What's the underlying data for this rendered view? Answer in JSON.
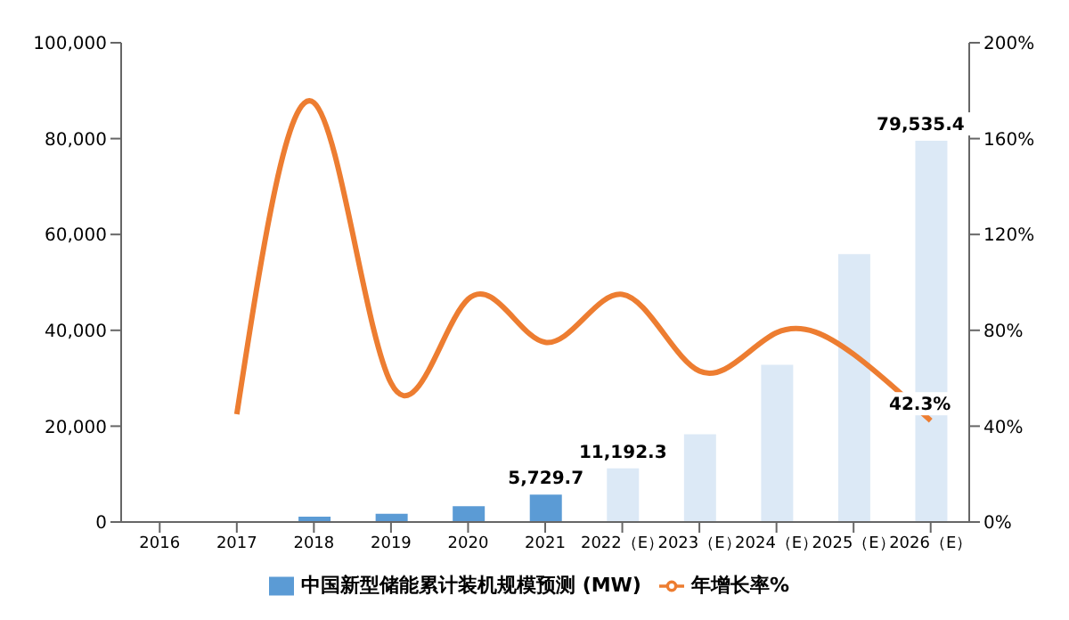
{
  "chart_data": {
    "type": "bar",
    "categories": [
      "2016",
      "2017",
      "2018",
      "2019",
      "2020",
      "2021",
      "2022（E）",
      "2023（E）",
      "2024（E）",
      "2025（E）",
      "2026（E）"
    ],
    "series": [
      {
        "name": "中国新型储能累计装机规模预测 (MW)",
        "color": "#5b9bd5",
        "colors": [
          "#5b9bd5",
          "#5b9bd5",
          "#5b9bd5",
          "#5b9bd5",
          "#5b9bd5",
          "#5b9bd5",
          "#dce9f6",
          "#dce9f6",
          "#dce9f6",
          "#dce9f6",
          "#dce9f6"
        ],
        "values": [
          null,
          null,
          1100,
          1700,
          3300,
          5729.7,
          11192.3,
          18300,
          32800,
          55900,
          79535.4
        ],
        "value_labels": [
          null,
          null,
          null,
          null,
          null,
          "5,729.7",
          "11,192.3",
          null,
          null,
          null,
          "79,535.4"
        ]
      },
      {
        "name": "年增长率%",
        "type": "line",
        "axis": "y2",
        "color": "#ed7d31",
        "values": [
          null,
          45,
          175,
          58,
          93,
          75,
          95,
          63,
          79,
          70,
          42.3
        ],
        "value_labels": [
          null,
          null,
          null,
          null,
          null,
          null,
          null,
          null,
          null,
          null,
          "42.3%"
        ]
      }
    ],
    "ylim": [
      0,
      100000
    ],
    "yticks": [
      {
        "value": 0,
        "label": "0"
      },
      {
        "value": 20000,
        "label": "20,000"
      },
      {
        "value": 40000,
        "label": "40,000"
      },
      {
        "value": 60000,
        "label": "60,000"
      },
      {
        "value": 80000,
        "label": "80,000"
      },
      {
        "value": 100000,
        "label": "100,000"
      }
    ],
    "y2lim": [
      0,
      200
    ],
    "y2ticks": [
      {
        "value": 0,
        "label": "0%"
      },
      {
        "value": 40,
        "label": "40%"
      },
      {
        "value": 80,
        "label": "80%"
      },
      {
        "value": 120,
        "label": "120%"
      },
      {
        "value": 160,
        "label": "160%"
      },
      {
        "value": 200,
        "label": "200%"
      }
    ],
    "legend": "bottom",
    "marker": "none"
  }
}
